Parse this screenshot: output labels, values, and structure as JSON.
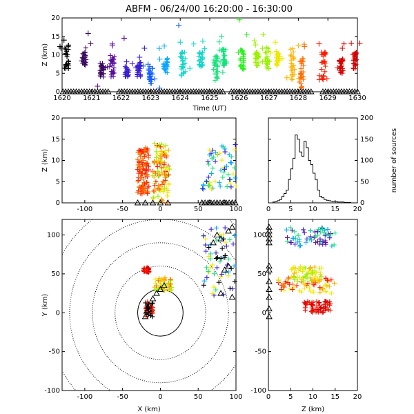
{
  "title": "ABFM - 06/24/00 16:20:00 - 16:30:00",
  "colors": {
    "sequence": [
      "#000000",
      "#3b0a60",
      "#5a0f9a",
      "#3a1fd0",
      "#1560ff",
      "#0aa6ff",
      "#13d6c8",
      "#14e27a",
      "#2bf01e",
      "#9cf000",
      "#f0e800",
      "#ffb400",
      "#ff6d00",
      "#ff1a00",
      "#d80000"
    ]
  },
  "chart_data": [
    {
      "id": "time-height",
      "type": "scatter",
      "xlabel": "Time (UT)",
      "ylabel": "Z (km)",
      "xlim": [
        1620,
        1630
      ],
      "ylim": [
        0,
        20
      ],
      "xticks": [
        1620,
        1621,
        1622,
        1623,
        1624,
        1625,
        1626,
        1627,
        1628,
        1629,
        1630
      ],
      "yticks": [
        0,
        5,
        10,
        15,
        20
      ],
      "clusters": [
        {
          "t": 1620.15,
          "z": [
            6,
            13
          ],
          "color": 0
        },
        {
          "t": 1620.75,
          "z": [
            7,
            12
          ],
          "color": 1
        },
        {
          "t": 1621.35,
          "z": [
            4,
            8
          ],
          "color": 1
        },
        {
          "t": 1621.7,
          "z": [
            4,
            10
          ],
          "color": 2
        },
        {
          "t": 1622.2,
          "z": [
            4,
            7
          ],
          "color": 3
        },
        {
          "t": 1622.6,
          "z": [
            4,
            8
          ],
          "color": 3
        },
        {
          "t": 1623.0,
          "z": [
            2,
            7
          ],
          "color": 4
        },
        {
          "t": 1623.5,
          "z": [
            5,
            10
          ],
          "color": 5
        },
        {
          "t": 1624.1,
          "z": [
            4,
            11
          ],
          "color": 6
        },
        {
          "t": 1624.7,
          "z": [
            6,
            11
          ],
          "color": 6
        },
        {
          "t": 1625.2,
          "z": [
            3,
            10
          ],
          "color": 7
        },
        {
          "t": 1625.5,
          "z": [
            7,
            12
          ],
          "color": 7
        },
        {
          "t": 1626.1,
          "z": [
            6,
            12
          ],
          "color": 8
        },
        {
          "t": 1626.6,
          "z": [
            7,
            11
          ],
          "color": 9
        },
        {
          "t": 1626.95,
          "z": [
            6,
            12
          ],
          "color": 9
        },
        {
          "t": 1627.3,
          "z": [
            7,
            11
          ],
          "color": 10
        },
        {
          "t": 1627.8,
          "z": [
            3,
            12
          ],
          "color": 11
        },
        {
          "t": 1628.1,
          "z": [
            1,
            9
          ],
          "color": 12
        },
        {
          "t": 1628.85,
          "z": [
            3,
            11
          ],
          "color": 13
        },
        {
          "t": 1629.45,
          "z": [
            5,
            9
          ],
          "color": 14
        },
        {
          "t": 1629.9,
          "z": [
            6,
            11
          ],
          "color": 14
        }
      ],
      "outliers": [
        {
          "t": 1622.1,
          "z": 14.5,
          "color": 2
        },
        {
          "t": 1623.95,
          "z": 18,
          "color": 4
        },
        {
          "t": 1626.0,
          "z": 19.5,
          "color": 8
        },
        {
          "t": 1625.4,
          "z": 15,
          "color": 7
        },
        {
          "t": 1628.7,
          "z": 13,
          "color": 13
        },
        {
          "t": 1623.3,
          "z": 1,
          "color": 4
        },
        {
          "t": 1621.2,
          "z": 1.5,
          "color": 2
        }
      ],
      "ground_triangles": {
        "z": 0,
        "t_ranges": [
          [
            1620,
            1621.6
          ],
          [
            1621.9,
            1625.5
          ],
          [
            1625.7,
            1628.5
          ],
          [
            1628.8,
            1630
          ]
        ]
      }
    },
    {
      "id": "x-z",
      "type": "scatter",
      "ylabel": "Z (km)",
      "xlim": [
        -130,
        100
      ],
      "ylim": [
        0,
        20
      ],
      "xticks": [
        -100,
        -50,
        0,
        50,
        100
      ],
      "yticks": [
        0,
        5,
        10,
        15,
        20
      ],
      "groups": [
        {
          "x": [
            -30,
            -15
          ],
          "z": [
            2,
            13
          ],
          "colors": [
            13,
            12
          ]
        },
        {
          "x": [
            -10,
            12
          ],
          "z": [
            0,
            14
          ],
          "colors": [
            10,
            11,
            12,
            13,
            9
          ]
        },
        {
          "x": [
            55,
            100
          ],
          "z": [
            3,
            14
          ],
          "colors": [
            3,
            5,
            7,
            10
          ]
        }
      ],
      "ground_triangles": {
        "z": 0,
        "x": [
          -30,
          -20,
          -10,
          0,
          10,
          55,
          65,
          75,
          85,
          95
        ]
      }
    },
    {
      "id": "z-histogram",
      "type": "bar",
      "ylabel": "number of sources",
      "xlim": [
        0,
        20
      ],
      "ylim": [
        0,
        200
      ],
      "xticks": [
        0,
        5,
        10,
        15,
        20
      ],
      "yticks": [
        0,
        50,
        100,
        150,
        200
      ],
      "bin_width": 0.5,
      "bin_start": 0,
      "values": [
        0,
        0,
        2,
        3,
        5,
        8,
        15,
        22,
        30,
        55,
        80,
        105,
        160,
        150,
        120,
        110,
        145,
        130,
        100,
        90,
        70,
        55,
        30,
        15,
        12,
        8,
        6,
        5,
        4,
        3,
        3,
        2,
        2,
        2,
        1,
        1,
        1,
        0,
        0,
        0
      ]
    },
    {
      "id": "plan-view",
      "type": "scatter",
      "xlabel": "X (km)",
      "ylabel": "Y (km)",
      "xlim": [
        -130,
        100
      ],
      "ylim": [
        -100,
        120
      ],
      "xticks": [
        -100,
        -50,
        0,
        50,
        100
      ],
      "yticks": [
        -100,
        -50,
        0,
        50,
        100
      ],
      "range_rings_km": [
        30,
        60,
        90,
        120,
        150
      ],
      "groups": [
        {
          "x": [
            -22,
            -15
          ],
          "y": [
            52,
            58
          ],
          "colors": [
            13,
            14
          ]
        },
        {
          "x": [
            -8,
            15
          ],
          "y": [
            28,
            45
          ],
          "colors": [
            10,
            11,
            12,
            9
          ]
        },
        {
          "x": [
            -20,
            -10
          ],
          "y": [
            -5,
            15
          ],
          "colors": [
            0,
            13
          ]
        },
        {
          "x": [
            55,
            100
          ],
          "y": [
            20,
            110
          ],
          "colors": [
            3,
            5,
            7,
            10,
            0
          ]
        }
      ],
      "stations": [
        [
          -20,
          -5
        ],
        [
          -18,
          2
        ],
        [
          -15,
          10
        ],
        [
          -10,
          18
        ],
        [
          -5,
          25
        ],
        [
          0,
          30
        ],
        [
          5,
          35
        ],
        [
          85,
          55
        ],
        [
          90,
          60
        ],
        [
          80,
          25
        ],
        [
          95,
          20
        ],
        [
          75,
          100
        ],
        [
          80,
          95
        ],
        [
          90,
          105
        ],
        [
          95,
          110
        ],
        [
          70,
          90
        ]
      ]
    },
    {
      "id": "z-y",
      "type": "scatter",
      "xlabel": "Z (km)",
      "xlim": [
        0,
        20
      ],
      "ylim": [
        -100,
        120
      ],
      "xticks": [
        0,
        5,
        10,
        15,
        20
      ],
      "yticks": [
        -100,
        -50,
        0,
        50,
        100
      ],
      "groups": [
        {
          "z": [
            2,
            15
          ],
          "y": [
            25,
            45
          ],
          "colors": [
            13,
            12,
            11,
            10
          ]
        },
        {
          "z": [
            5,
            12
          ],
          "y": [
            40,
            60
          ],
          "colors": [
            10,
            11,
            9
          ]
        },
        {
          "z": [
            8,
            14
          ],
          "y": [
            0,
            15
          ],
          "colors": [
            13,
            14
          ]
        },
        {
          "z": [
            4,
            15
          ],
          "y": [
            85,
            110
          ],
          "colors": [
            3,
            5,
            2,
            7
          ]
        }
      ],
      "ground_triangles": {
        "z": 0,
        "y": [
          -5,
          5,
          20,
          30,
          40,
          55,
          60,
          90,
          95,
          100,
          105,
          110
        ]
      }
    }
  ]
}
